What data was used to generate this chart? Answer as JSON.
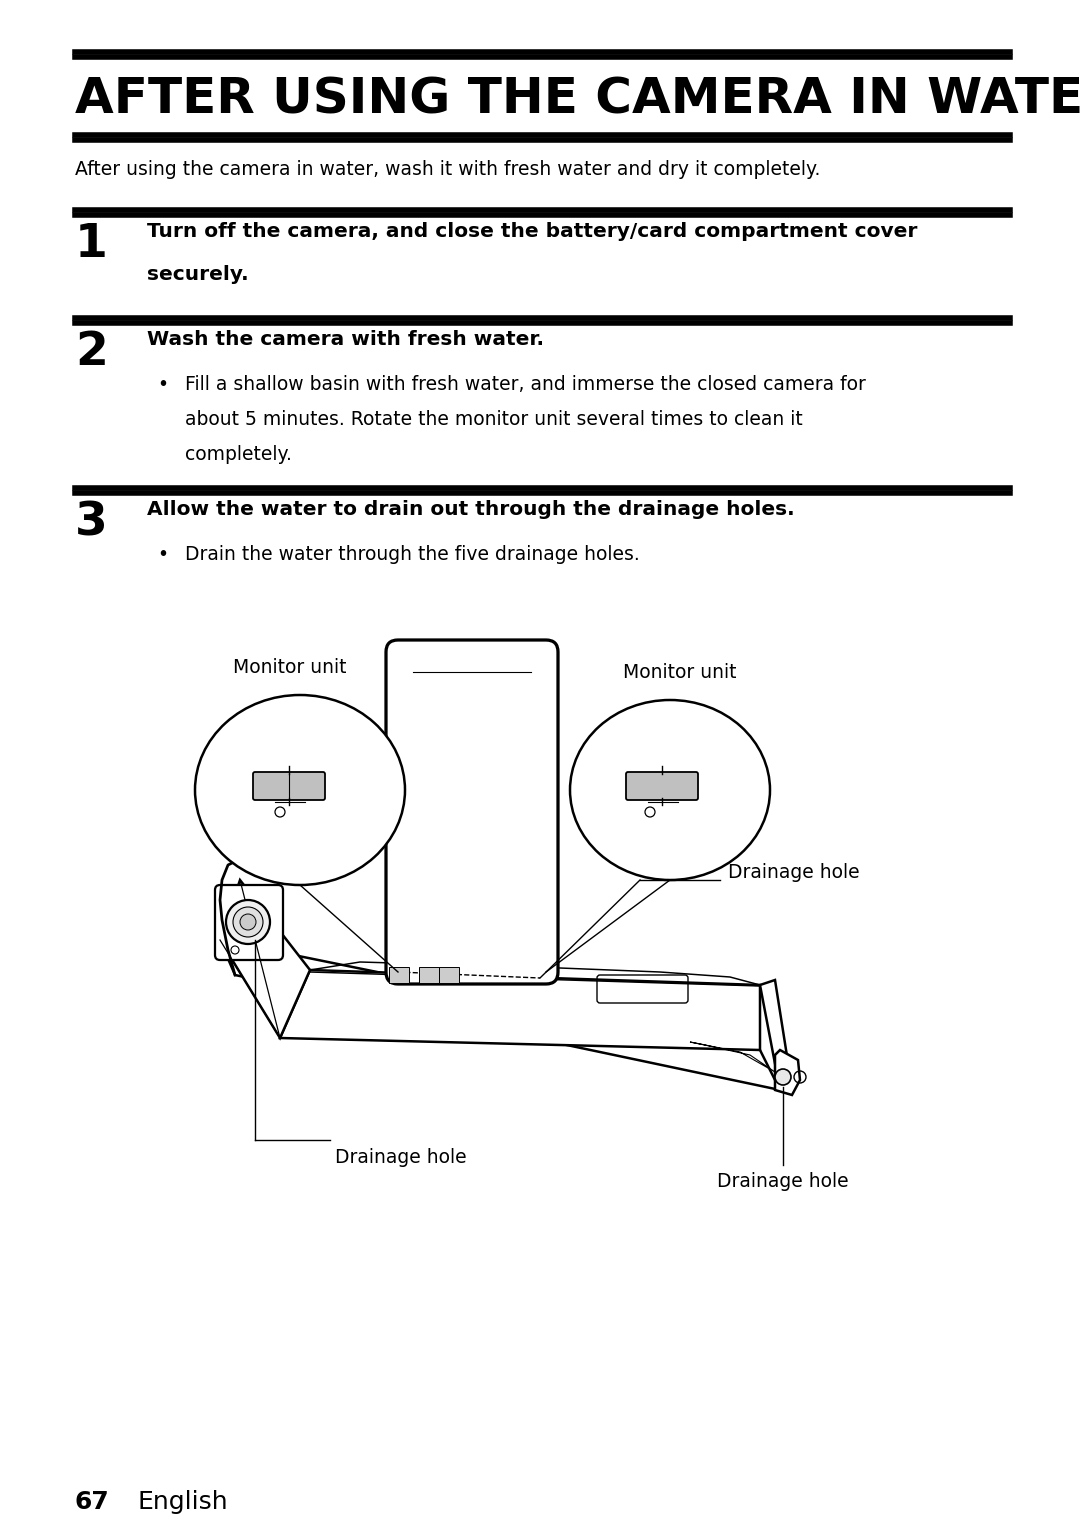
{
  "title": "AFTER USING THE CAMERA IN WATER",
  "subtitle": "After using the camera in water, wash it with fresh water and dry it completely.",
  "step1_num": "1",
  "step1_line1": "Turn off the camera, and close the battery/card compartment cover",
  "step1_line2": "securely.",
  "step2_num": "2",
  "step2_bold": "Wash the camera with fresh water.",
  "step2_b1": "Fill a shallow basin with fresh water, and immerse the closed camera for",
  "step2_b2": "about 5 minutes. Rotate the monitor unit several times to clean it",
  "step2_b3": "completely.",
  "step3_num": "3",
  "step3_bold": "Allow the water to drain out through the drainage holes.",
  "step3_b1": "Drain the water through the five drainage holes.",
  "label_mon_left": "Monitor unit",
  "label_mon_right": "Monitor unit",
  "label_drain_right": "Drainage hole",
  "label_drain_left": "Drainage hole",
  "label_drain_bottom": "Drainage hole",
  "page_num": "67",
  "page_lang": "English",
  "bg": "#ffffff",
  "fg": "#000000"
}
